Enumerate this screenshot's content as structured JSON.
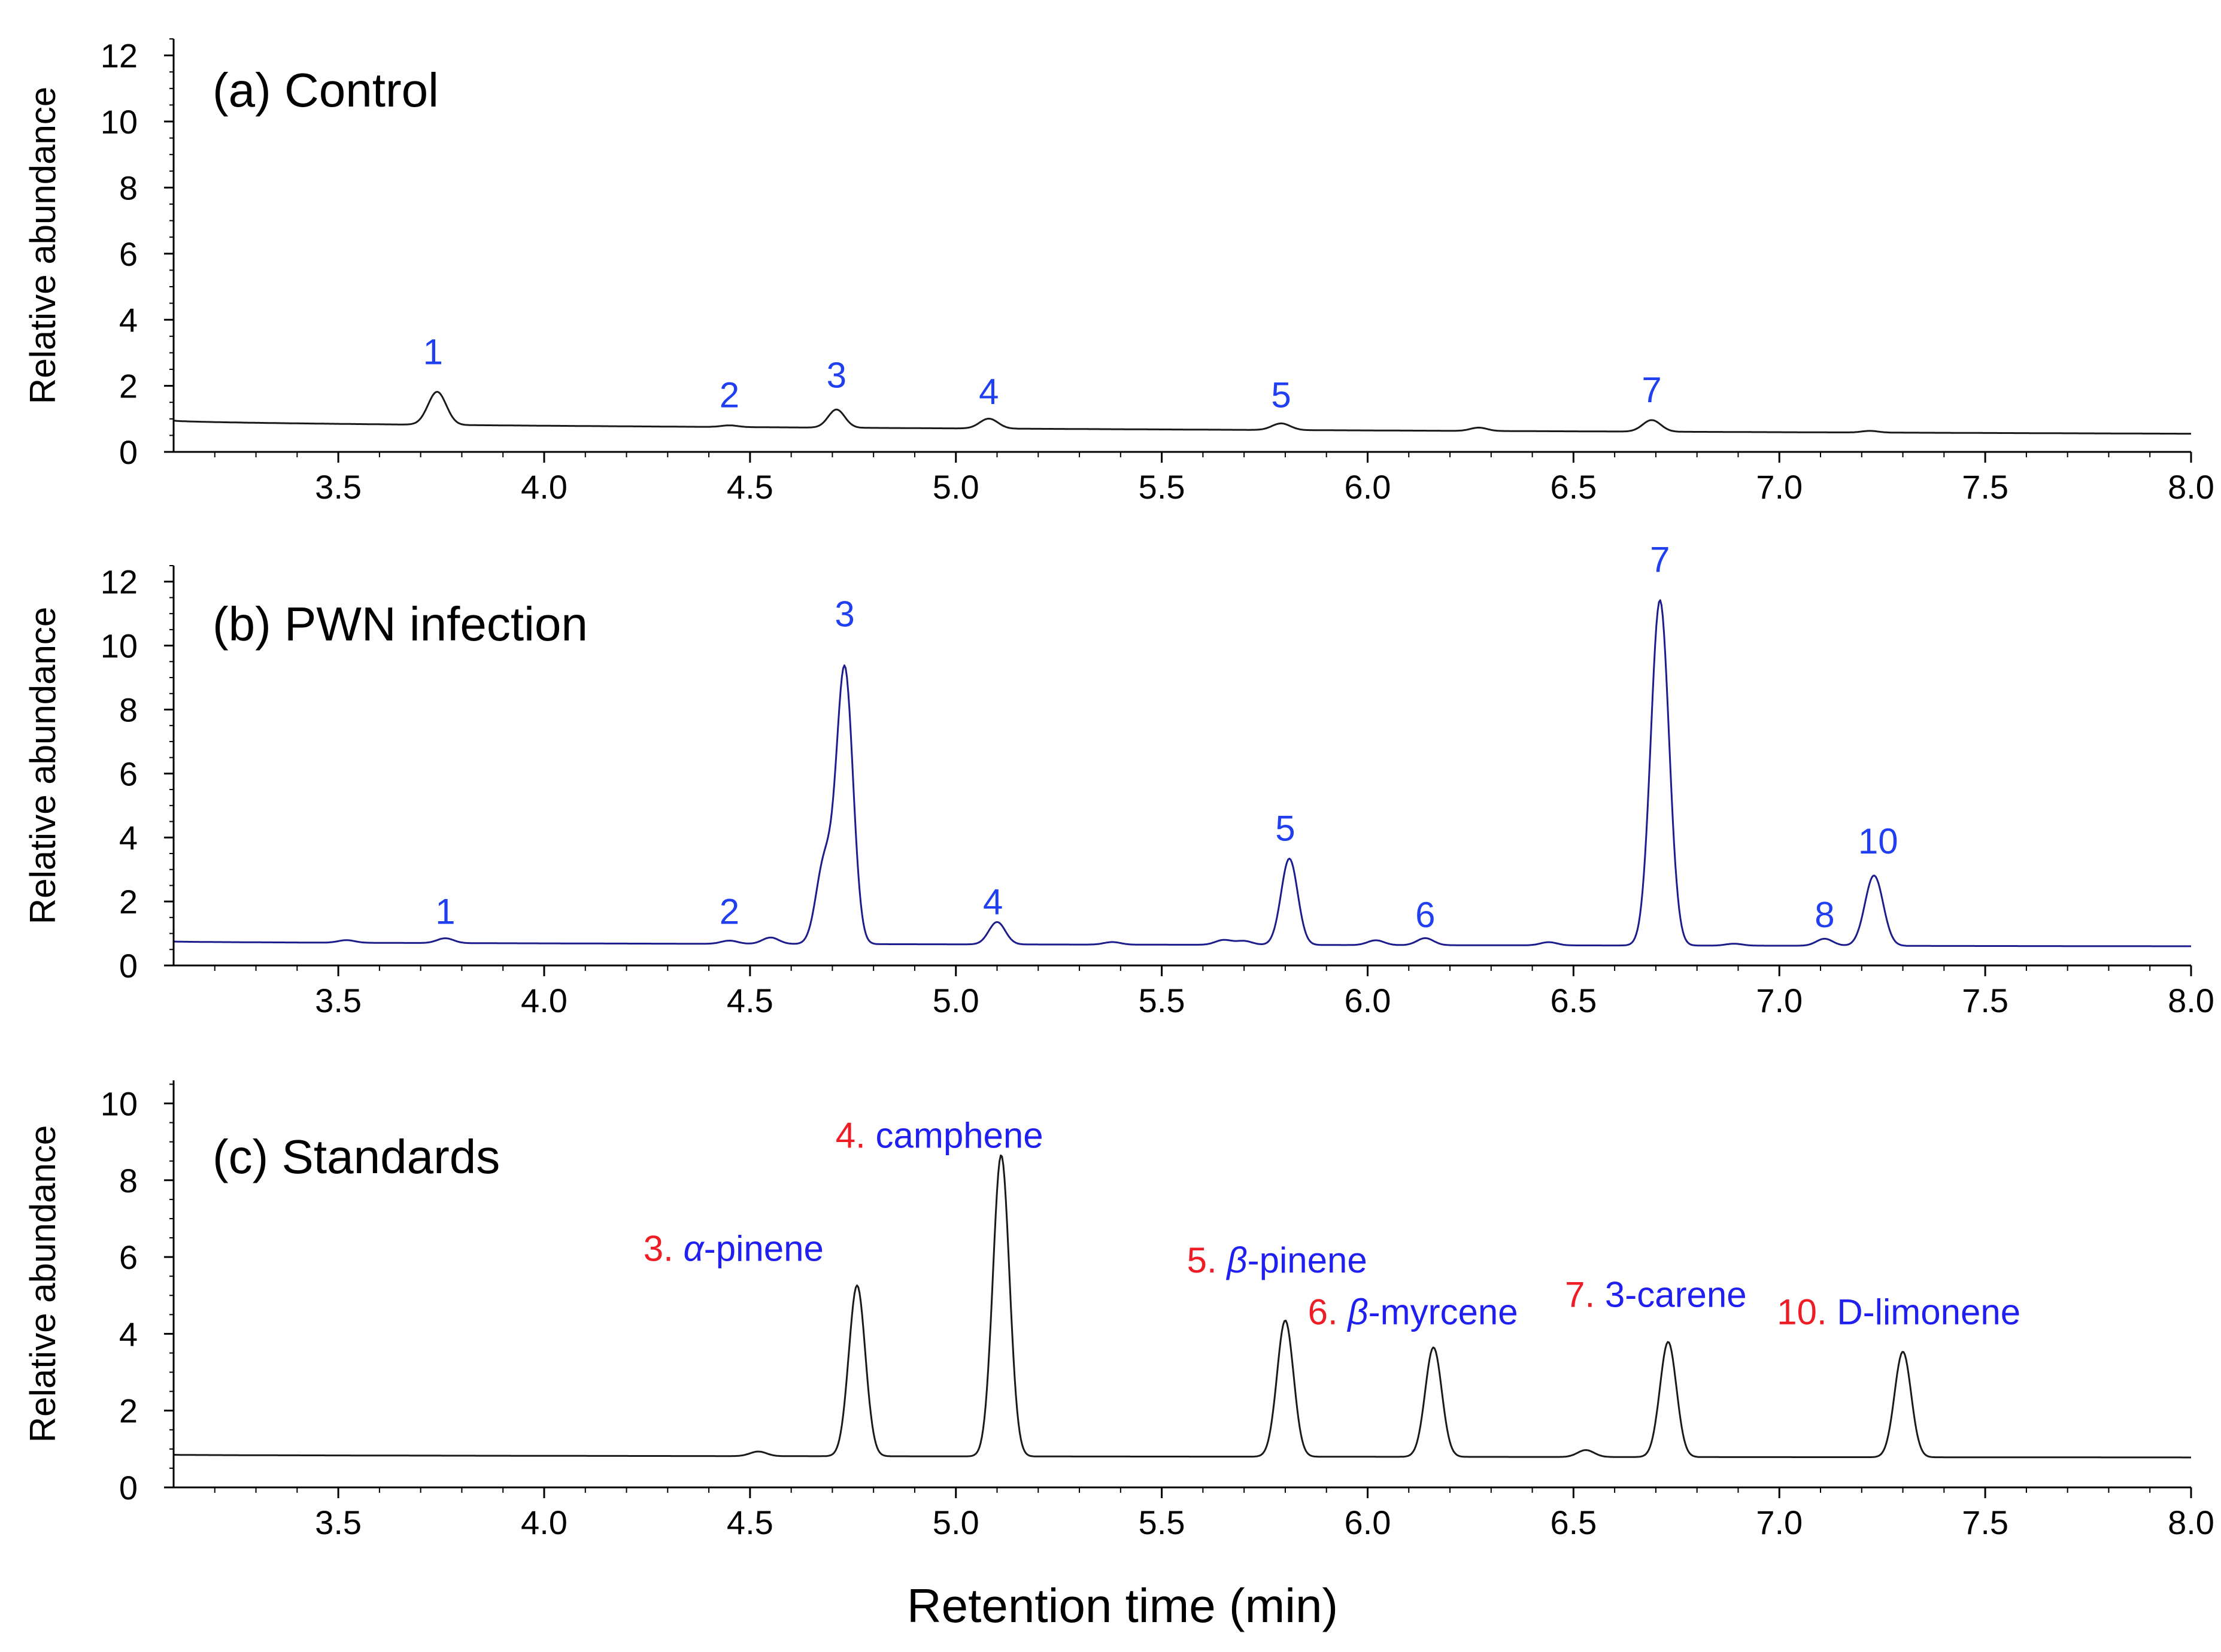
{
  "figure": {
    "xlabel": "Retention time (min)",
    "colors": {
      "number": "#ee1c24",
      "name": "#1f1ff0",
      "peak": "#1f3ff0"
    }
  },
  "chart_data": [
    {
      "type": "line",
      "panel": "a",
      "title": "(a)   Control",
      "ylabel": "Relative abundance",
      "xlabel": "",
      "xlim": [
        3.1,
        8.0
      ],
      "ylim": [
        0,
        12.5
      ],
      "xticks": [
        3.5,
        4.0,
        4.5,
        5.0,
        5.5,
        6.0,
        6.5,
        7.0,
        7.5,
        8.0
      ],
      "xtick_labels": [
        "3.5",
        "4.0",
        "4.5",
        "5.0",
        "5.5",
        "6.0",
        "6.5",
        "7.0",
        "7.5",
        "8.0"
      ],
      "yticks": [
        0,
        2,
        4,
        6,
        8,
        10,
        12
      ],
      "ytick_labels": [
        "0",
        "2",
        "4",
        "6",
        "8",
        "10",
        "12"
      ],
      "line_color": "#1a1a1a",
      "baseline": {
        "start": 0.95,
        "end": 0.55
      },
      "peaks": [
        {
          "rt": 3.74,
          "height": 1.0,
          "width": 0.022
        },
        {
          "rt": 4.45,
          "height": 0.05,
          "width": 0.02
        },
        {
          "rt": 4.71,
          "height": 0.55,
          "width": 0.02
        },
        {
          "rt": 5.08,
          "height": 0.3,
          "width": 0.022
        },
        {
          "rt": 5.79,
          "height": 0.2,
          "width": 0.022
        },
        {
          "rt": 6.27,
          "height": 0.1,
          "width": 0.02
        },
        {
          "rt": 6.69,
          "height": 0.35,
          "width": 0.022
        },
        {
          "rt": 7.22,
          "height": 0.05,
          "width": 0.02
        }
      ],
      "annotations": [
        {
          "rt": 3.73,
          "y": 2.65,
          "text": "1"
        },
        {
          "rt": 4.45,
          "y": 1.35,
          "text": "2"
        },
        {
          "rt": 4.71,
          "y": 1.95,
          "text": "3"
        },
        {
          "rt": 5.08,
          "y": 1.45,
          "text": "4"
        },
        {
          "rt": 5.79,
          "y": 1.35,
          "text": "5"
        },
        {
          "rt": 6.69,
          "y": 1.5,
          "text": "7"
        }
      ]
    },
    {
      "type": "line",
      "panel": "b",
      "title": "(b)   PWN infection",
      "ylabel": "Relative abundance",
      "xlabel": "",
      "xlim": [
        3.1,
        8.0
      ],
      "ylim": [
        0,
        12.5
      ],
      "xticks": [
        3.5,
        4.0,
        4.5,
        5.0,
        5.5,
        6.0,
        6.5,
        7.0,
        7.5,
        8.0
      ],
      "xtick_labels": [
        "3.5",
        "4.0",
        "4.5",
        "5.0",
        "5.5",
        "6.0",
        "6.5",
        "7.0",
        "7.5",
        "8.0"
      ],
      "yticks": [
        0,
        2,
        4,
        6,
        8,
        10,
        12
      ],
      "ytick_labels": [
        "0",
        "2",
        "4",
        "6",
        "8",
        "10",
        "12"
      ],
      "line_color": "#1c1c8c",
      "baseline": {
        "start": 0.75,
        "end": 0.6
      },
      "peaks": [
        {
          "rt": 3.52,
          "height": 0.08,
          "width": 0.02
        },
        {
          "rt": 3.76,
          "height": 0.15,
          "width": 0.02
        },
        {
          "rt": 4.45,
          "height": 0.1,
          "width": 0.02
        },
        {
          "rt": 4.55,
          "height": 0.2,
          "width": 0.02
        },
        {
          "rt": 4.68,
          "height": 2.5,
          "width": 0.02
        },
        {
          "rt": 4.73,
          "height": 8.6,
          "width": 0.02
        },
        {
          "rt": 5.1,
          "height": 0.7,
          "width": 0.02
        },
        {
          "rt": 5.38,
          "height": 0.08,
          "width": 0.02
        },
        {
          "rt": 5.65,
          "height": 0.15,
          "width": 0.02
        },
        {
          "rt": 5.7,
          "height": 0.12,
          "width": 0.02
        },
        {
          "rt": 5.81,
          "height": 2.7,
          "width": 0.02
        },
        {
          "rt": 6.02,
          "height": 0.15,
          "width": 0.02
        },
        {
          "rt": 6.14,
          "height": 0.22,
          "width": 0.02
        },
        {
          "rt": 6.44,
          "height": 0.1,
          "width": 0.02
        },
        {
          "rt": 6.71,
          "height": 10.8,
          "width": 0.022
        },
        {
          "rt": 6.89,
          "height": 0.06,
          "width": 0.02
        },
        {
          "rt": 7.11,
          "height": 0.22,
          "width": 0.02
        },
        {
          "rt": 7.23,
          "height": 2.2,
          "width": 0.022
        }
      ],
      "annotations": [
        {
          "rt": 3.76,
          "y": 1.3,
          "text": "1"
        },
        {
          "rt": 4.45,
          "y": 1.3,
          "text": "2"
        },
        {
          "rt": 4.73,
          "y": 10.6,
          "text": "3"
        },
        {
          "rt": 5.09,
          "y": 1.6,
          "text": "4"
        },
        {
          "rt": 5.8,
          "y": 3.9,
          "text": "5"
        },
        {
          "rt": 6.14,
          "y": 1.2,
          "text": "6"
        },
        {
          "rt": 6.71,
          "y": 12.3,
          "text": "7"
        },
        {
          "rt": 7.11,
          "y": 1.2,
          "text": "8"
        },
        {
          "rt": 7.24,
          "y": 3.5,
          "text": "10"
        }
      ]
    },
    {
      "type": "line",
      "panel": "c",
      "title": "(c)   Standards",
      "ylabel": "Relative abundance",
      "xlabel": "Retention time (min)",
      "xlim": [
        3.1,
        8.0
      ],
      "ylim": [
        0,
        10.6
      ],
      "xticks": [
        3.5,
        4.0,
        4.5,
        5.0,
        5.5,
        6.0,
        6.5,
        7.0,
        7.5,
        8.0
      ],
      "xtick_labels": [
        "3.5",
        "4.0",
        "4.5",
        "5.0",
        "5.5",
        "6.0",
        "6.5",
        "7.0",
        "7.5",
        "8.0"
      ],
      "yticks": [
        0,
        2,
        4,
        6,
        8,
        10
      ],
      "ytick_labels": [
        "0",
        "2",
        "4",
        "6",
        "8",
        "10"
      ],
      "line_color": "#1a1a1a",
      "baseline": {
        "start": 0.85,
        "end": 0.78
      },
      "peaks": [
        {
          "rt": 4.52,
          "height": 0.12,
          "width": 0.02
        },
        {
          "rt": 4.76,
          "height": 4.45,
          "width": 0.02
        },
        {
          "rt": 5.11,
          "height": 7.85,
          "width": 0.02
        },
        {
          "rt": 5.8,
          "height": 3.55,
          "width": 0.02
        },
        {
          "rt": 6.16,
          "height": 2.85,
          "width": 0.02
        },
        {
          "rt": 6.53,
          "height": 0.18,
          "width": 0.02
        },
        {
          "rt": 6.73,
          "height": 3.0,
          "width": 0.02
        },
        {
          "rt": 7.3,
          "height": 2.75,
          "width": 0.02
        }
      ],
      "annotations": [
        {
          "rt": 4.46,
          "y": 5.9,
          "num": "3.",
          "greek": "α",
          "name": "-pinene"
        },
        {
          "rt": 4.96,
          "y": 8.85,
          "num": "4.",
          "greek": "",
          "name": " camphene"
        },
        {
          "rt": 5.78,
          "y": 5.6,
          "num": "5.",
          "greek": "β",
          "name": "-pinene"
        },
        {
          "rt": 6.11,
          "y": 4.25,
          "num": "6.",
          "greek": "β",
          "name": "-myrcene"
        },
        {
          "rt": 6.7,
          "y": 4.7,
          "num": "7.",
          "greek": "",
          "name": " 3-carene"
        },
        {
          "rt": 7.29,
          "y": 4.25,
          "num": "10.",
          "greek": "",
          "name": " D-limonene"
        }
      ]
    }
  ]
}
